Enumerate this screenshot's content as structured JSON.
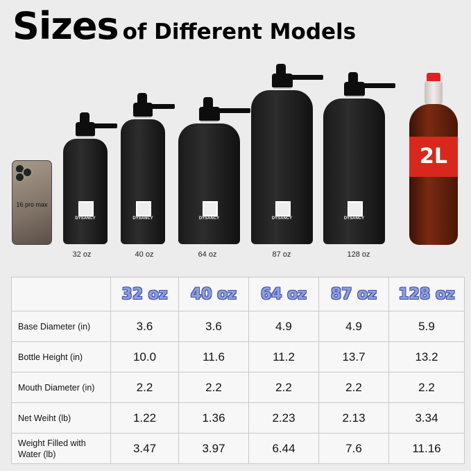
{
  "title": {
    "main": "Sizes",
    "sub": "of Different Models"
  },
  "phone": {
    "label": "16 pro max"
  },
  "bottles": [
    {
      "size": "32 oz",
      "brand": "DYSANCY"
    },
    {
      "size": "40 oz",
      "brand": "DYSANCY"
    },
    {
      "size": "64 oz",
      "brand": "DYSANCY"
    },
    {
      "size": "87 oz",
      "brand": "DYSANCY"
    },
    {
      "size": "128 oz",
      "brand": "DYSANCY"
    }
  ],
  "soda": {
    "label": "2L"
  },
  "table": {
    "headers": [
      "",
      "32 oz",
      "40 oz",
      "64 oz",
      "87 oz",
      "128 oz"
    ],
    "rows": [
      {
        "label": "Base Diameter (in)",
        "values": [
          "3.6",
          "3.6",
          "4.9",
          "4.9",
          "5.9"
        ]
      },
      {
        "label": "Bottle Height (in)",
        "values": [
          "10.0",
          "11.6",
          "11.2",
          "13.7",
          "13.2"
        ]
      },
      {
        "label": "Mouth Diameter (in)",
        "values": [
          "2.2",
          "2.2",
          "2.2",
          "2.2",
          "2.2"
        ]
      },
      {
        "label": "Net Weiht (lb)",
        "values": [
          "1.22",
          "1.36",
          "2.23",
          "2.13",
          "3.34"
        ]
      },
      {
        "label": "Weight Filled with Water (lb)",
        "values": [
          "3.47",
          "3.97",
          "6.44",
          "7.6",
          "11.16"
        ]
      }
    ]
  },
  "colors": {
    "header_text": "#8d9ee0",
    "header_outline": "#3f50a8",
    "background": "#ececec",
    "soda_label": "#d8281c"
  }
}
